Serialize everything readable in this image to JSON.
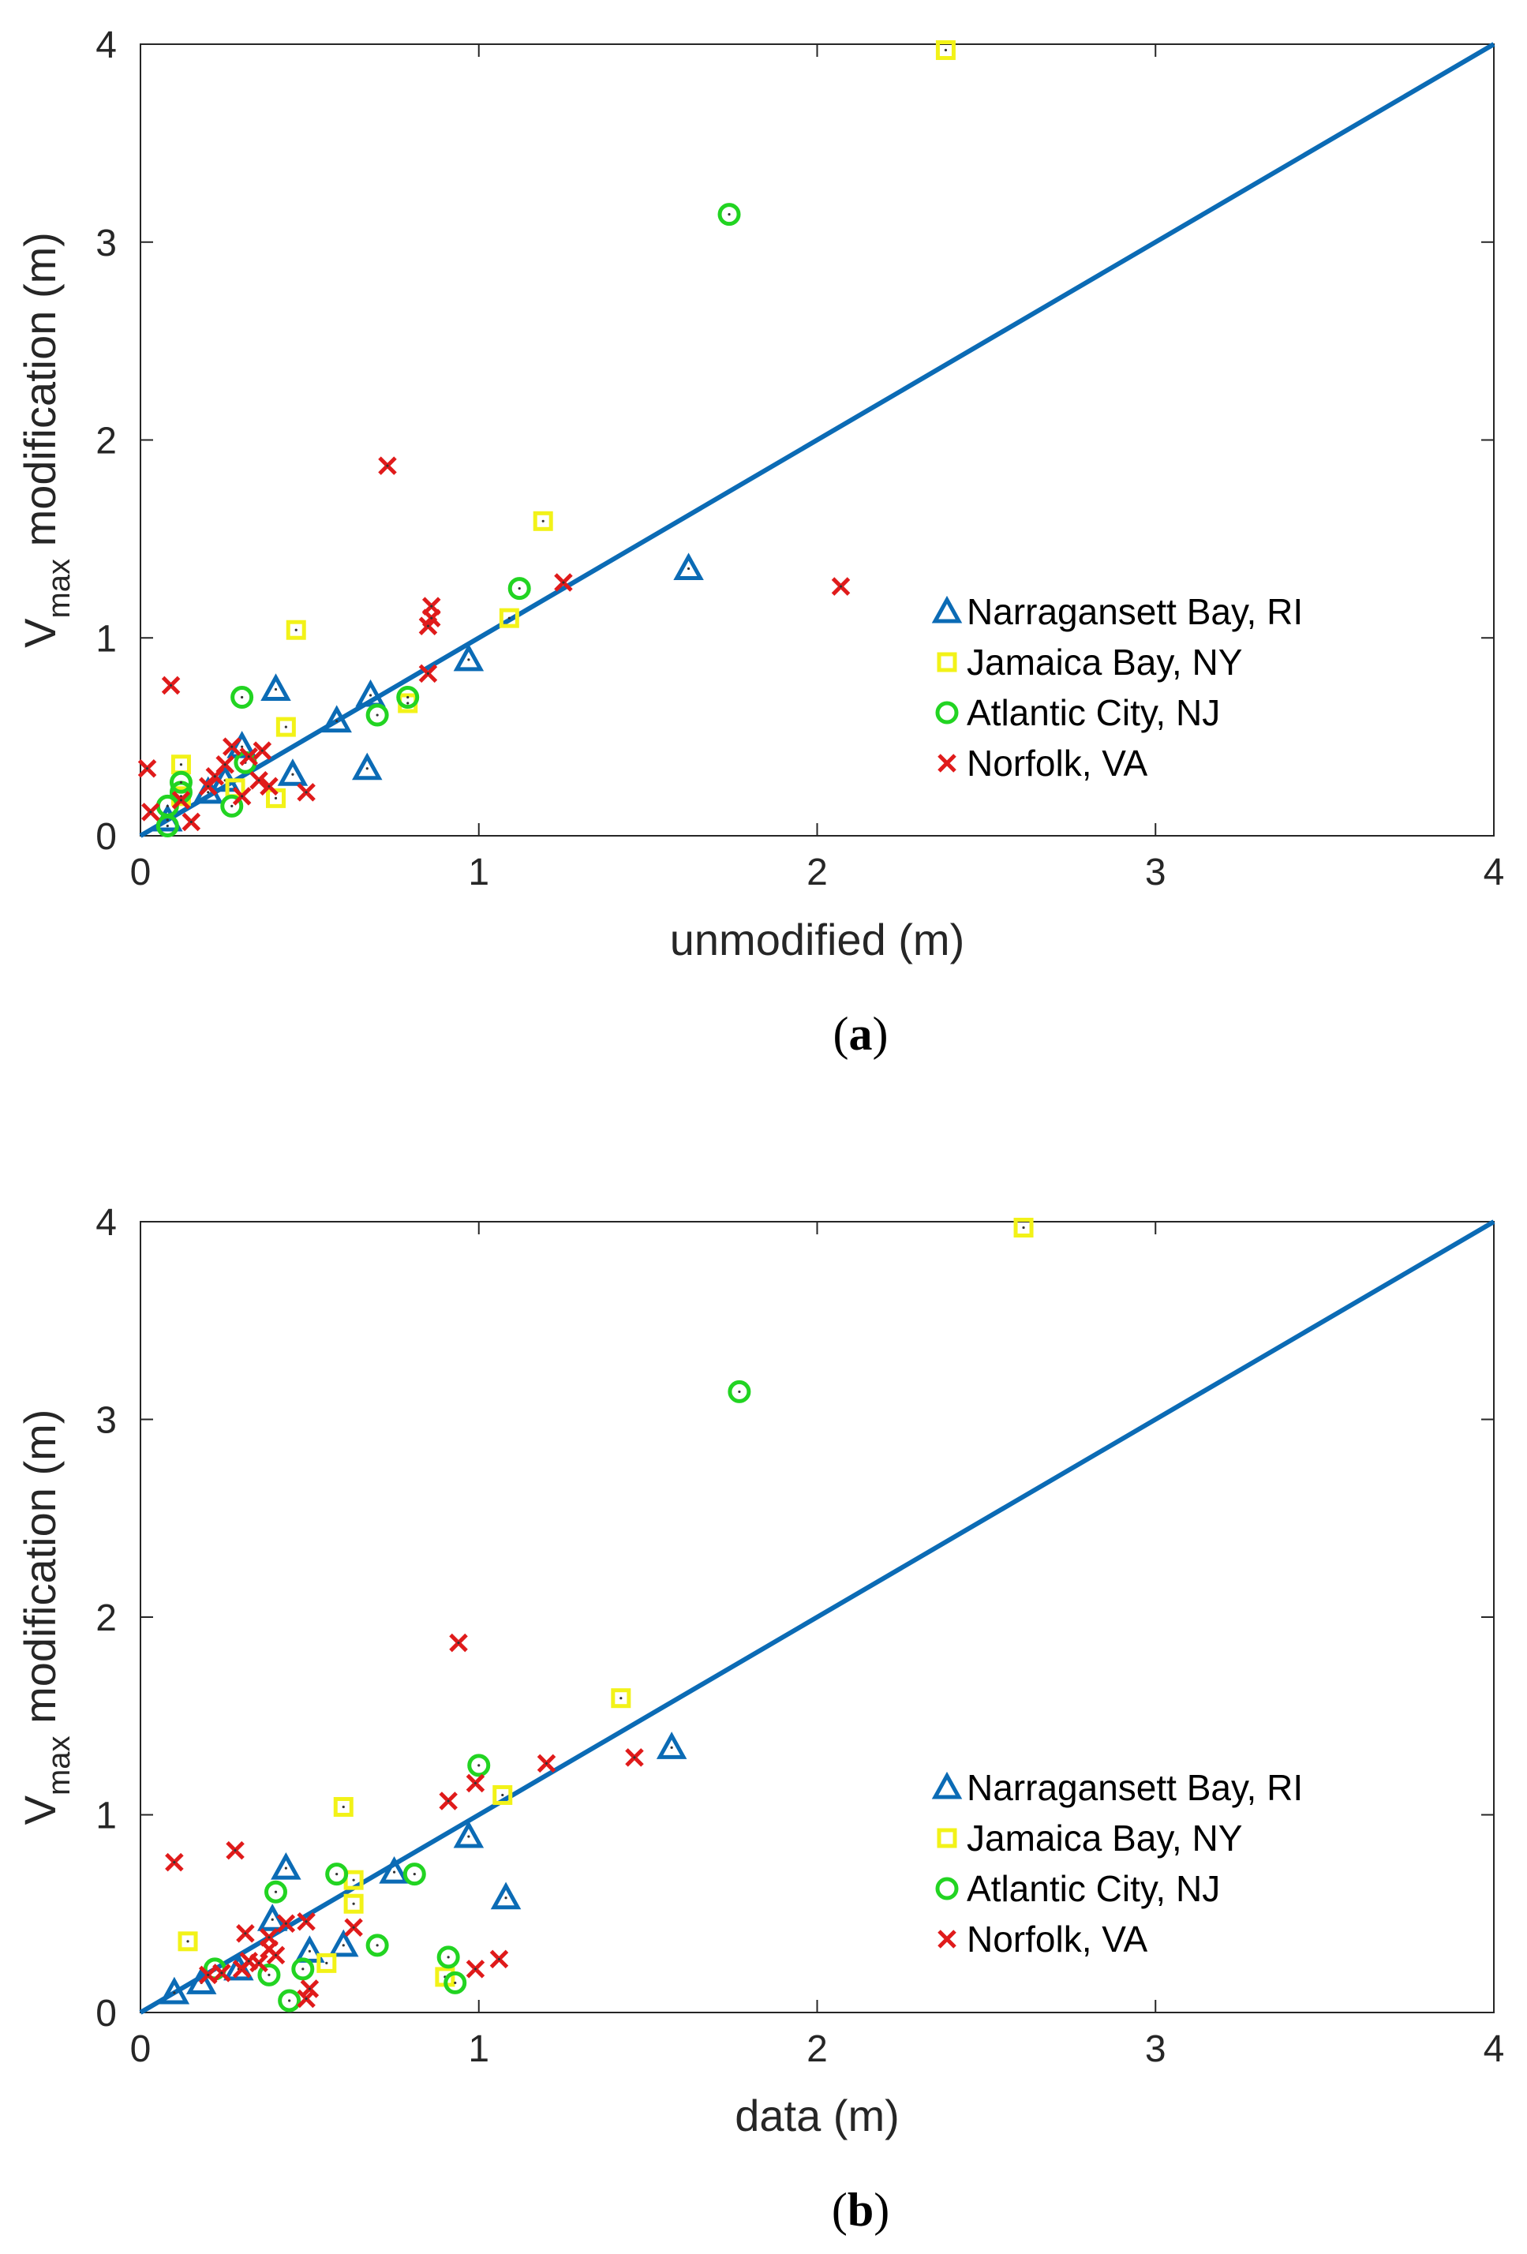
{
  "chart_data": [
    {
      "type": "scatter",
      "panel_label": "a",
      "title": "",
      "xlabel": "unmodified (m)",
      "ylabel_main": "V",
      "ylabel_sub": "max",
      "ylabel_rest": " modification (m)",
      "xlim": [
        0,
        4
      ],
      "ylim": [
        0,
        4
      ],
      "xticks": [
        "0",
        "1",
        "2",
        "3",
        "4"
      ],
      "yticks": [
        "0",
        "1",
        "2",
        "3",
        "4"
      ],
      "grid": false,
      "reference_line": {
        "name": "1:1 line",
        "x": [
          0,
          4
        ],
        "y": [
          0,
          4
        ],
        "color": "#0b6bb5"
      },
      "legend_position": "lower-right",
      "series": [
        {
          "name": "Narragansett Bay, RI",
          "marker": "triangle",
          "color": "#0b6bb5",
          "points": [
            [
              0.08,
              0.08
            ],
            [
              0.2,
              0.22
            ],
            [
              0.25,
              0.28
            ],
            [
              0.3,
              0.45
            ],
            [
              0.4,
              0.74
            ],
            [
              0.45,
              0.31
            ],
            [
              0.58,
              0.58
            ],
            [
              0.67,
              0.34
            ],
            [
              0.68,
              0.71
            ],
            [
              0.97,
              0.89
            ],
            [
              1.62,
              1.35
            ]
          ]
        },
        {
          "name": "Jamaica Bay, NY",
          "marker": "square",
          "color": "#f2f218",
          "points": [
            [
              0.12,
              0.36
            ],
            [
              0.12,
              0.2
            ],
            [
              0.28,
              0.24
            ],
            [
              0.4,
              0.19
            ],
            [
              0.43,
              0.55
            ],
            [
              0.46,
              1.04
            ],
            [
              0.79,
              0.67
            ],
            [
              1.09,
              1.1
            ],
            [
              1.19,
              1.59
            ],
            [
              2.38,
              3.97
            ]
          ]
        },
        {
          "name": "Atlantic City, NJ",
          "marker": "circle",
          "color": "#22d422",
          "points": [
            [
              0.08,
              0.05
            ],
            [
              0.08,
              0.15
            ],
            [
              0.12,
              0.22
            ],
            [
              0.12,
              0.27
            ],
            [
              0.27,
              0.15
            ],
            [
              0.3,
              0.7
            ],
            [
              0.31,
              0.37
            ],
            [
              0.7,
              0.61
            ],
            [
              0.79,
              0.7
            ],
            [
              1.12,
              1.25
            ],
            [
              1.74,
              3.14
            ]
          ]
        },
        {
          "name": "Norfolk, VA",
          "marker": "x",
          "color": "#e01b1b",
          "points": [
            [
              0.02,
              0.34
            ],
            [
              0.03,
              0.12
            ],
            [
              0.09,
              0.76
            ],
            [
              0.12,
              0.18
            ],
            [
              0.15,
              0.07
            ],
            [
              0.2,
              0.25
            ],
            [
              0.22,
              0.3
            ],
            [
              0.25,
              0.36
            ],
            [
              0.27,
              0.45
            ],
            [
              0.3,
              0.2
            ],
            [
              0.32,
              0.4
            ],
            [
              0.35,
              0.28
            ],
            [
              0.36,
              0.43
            ],
            [
              0.38,
              0.25
            ],
            [
              0.49,
              0.22
            ],
            [
              0.73,
              1.87
            ],
            [
              0.85,
              0.82
            ],
            [
              0.85,
              1.06
            ],
            [
              0.86,
              1.1
            ],
            [
              0.86,
              1.16
            ],
            [
              1.25,
              1.28
            ],
            [
              2.07,
              1.26
            ]
          ]
        }
      ]
    },
    {
      "type": "scatter",
      "panel_label": "b",
      "title": "",
      "xlabel": "data (m)",
      "ylabel_main": "V",
      "ylabel_sub": "max",
      "ylabel_rest": " modification (m)",
      "xlim": [
        0,
        4
      ],
      "ylim": [
        0,
        4
      ],
      "xticks": [
        "0",
        "1",
        "2",
        "3",
        "4"
      ],
      "yticks": [
        "0",
        "1",
        "2",
        "3",
        "4"
      ],
      "grid": false,
      "reference_line": {
        "name": "1:1 line",
        "x": [
          0,
          4
        ],
        "y": [
          0,
          4
        ],
        "color": "#0b6bb5"
      },
      "legend_position": "lower-right",
      "series": [
        {
          "name": "Narragansett Bay, RI",
          "marker": "triangle",
          "color": "#0b6bb5",
          "points": [
            [
              0.1,
              0.1
            ],
            [
              0.18,
              0.15
            ],
            [
              0.29,
              0.22
            ],
            [
              0.39,
              0.47
            ],
            [
              0.43,
              0.73
            ],
            [
              0.5,
              0.31
            ],
            [
              0.6,
              0.34
            ],
            [
              0.75,
              0.71
            ],
            [
              0.97,
              0.89
            ],
            [
              1.08,
              0.58
            ],
            [
              1.57,
              1.34
            ]
          ]
        },
        {
          "name": "Jamaica Bay, NY",
          "marker": "square",
          "color": "#f2f218",
          "points": [
            [
              0.14,
              0.36
            ],
            [
              0.55,
              0.25
            ],
            [
              0.6,
              1.04
            ],
            [
              0.63,
              0.67
            ],
            [
              0.63,
              0.55
            ],
            [
              0.9,
              0.18
            ],
            [
              1.07,
              1.1
            ],
            [
              1.42,
              1.59
            ],
            [
              2.61,
              3.97
            ]
          ]
        },
        {
          "name": "Atlantic City, NJ",
          "marker": "circle",
          "color": "#22d422",
          "points": [
            [
              0.22,
              0.22
            ],
            [
              0.38,
              0.19
            ],
            [
              0.4,
              0.61
            ],
            [
              0.44,
              0.06
            ],
            [
              0.48,
              0.22
            ],
            [
              0.58,
              0.7
            ],
            [
              0.7,
              0.34
            ],
            [
              0.81,
              0.7
            ],
            [
              0.91,
              0.28
            ],
            [
              0.93,
              0.15
            ],
            [
              1.0,
              1.25
            ],
            [
              1.77,
              3.14
            ]
          ]
        },
        {
          "name": "Norfolk, VA",
          "marker": "x",
          "color": "#e01b1b",
          "points": [
            [
              0.1,
              0.76
            ],
            [
              0.2,
              0.19
            ],
            [
              0.24,
              0.2
            ],
            [
              0.28,
              0.82
            ],
            [
              0.3,
              0.22
            ],
            [
              0.31,
              0.4
            ],
            [
              0.32,
              0.26
            ],
            [
              0.35,
              0.25
            ],
            [
              0.38,
              0.38
            ],
            [
              0.38,
              0.32
            ],
            [
              0.4,
              0.29
            ],
            [
              0.43,
              0.45
            ],
            [
              0.49,
              0.46
            ],
            [
              0.49,
              0.07
            ],
            [
              0.5,
              0.12
            ],
            [
              0.63,
              0.43
            ],
            [
              0.91,
              1.07
            ],
            [
              0.94,
              1.87
            ],
            [
              0.99,
              1.16
            ],
            [
              0.99,
              0.22
            ],
            [
              1.06,
              0.27
            ],
            [
              1.2,
              1.26
            ],
            [
              1.46,
              1.29
            ]
          ]
        }
      ]
    }
  ]
}
